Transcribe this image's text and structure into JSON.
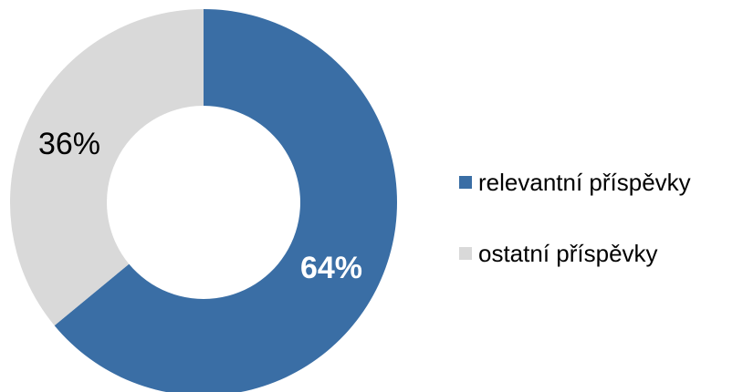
{
  "chart_data": {
    "type": "pie",
    "donut": true,
    "slices": [
      {
        "name": "relevantní příspěvky",
        "value": 64,
        "label": "64%",
        "color": "#3a6ea5",
        "label_color": "#ffffff",
        "label_bold": true
      },
      {
        "name": "ostatní příspěvky",
        "value": 36,
        "label": "36%",
        "color": "#d9d9d9",
        "label_color": "#000000",
        "label_bold": false
      }
    ],
    "legend_position": "right",
    "start": "top",
    "direction": "clockwise"
  }
}
